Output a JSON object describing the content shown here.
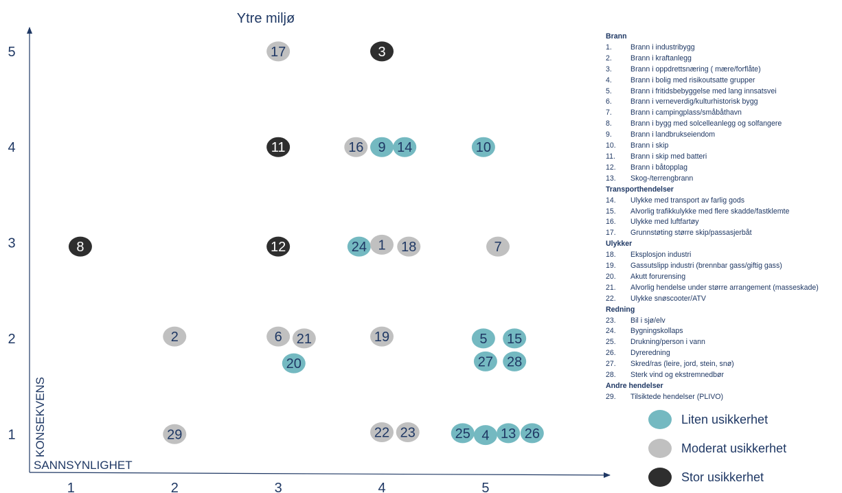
{
  "chart_data": {
    "type": "scatter",
    "title": "Ytre miljø",
    "xlabel": "SANNSYNLIGHET",
    "ylabel": "KONSEKVENS",
    "x_ticks": [
      "1",
      "2",
      "3",
      "4",
      "5"
    ],
    "y_ticks": [
      "1",
      "2",
      "3",
      "4",
      "5"
    ],
    "xlim": [
      0.6,
      6.2
    ],
    "ylim": [
      0.6,
      5.25
    ],
    "grid": false,
    "colors": {
      "liten": "#74b9c1",
      "moderat": "#c0c0c0",
      "stor": "#2e2e2e",
      "axis": "#1f3864",
      "text": "#1f3864"
    },
    "points": [
      {
        "label": "17",
        "x": 3.0,
        "y": 5.0,
        "uncertainty": "moderat"
      },
      {
        "label": "3",
        "x": 4.0,
        "y": 5.0,
        "uncertainty": "stor"
      },
      {
        "label": "11",
        "x": 3.0,
        "y": 4.0,
        "uncertainty": "stor"
      },
      {
        "label": "16",
        "x": 3.75,
        "y": 4.0,
        "uncertainty": "moderat"
      },
      {
        "label": "9",
        "x": 4.0,
        "y": 4.0,
        "uncertainty": "liten"
      },
      {
        "label": "14",
        "x": 4.22,
        "y": 4.0,
        "uncertainty": "liten"
      },
      {
        "label": "10",
        "x": 4.98,
        "y": 4.0,
        "uncertainty": "liten"
      },
      {
        "label": "8",
        "x": 1.09,
        "y": 2.96,
        "uncertainty": "stor"
      },
      {
        "label": "12",
        "x": 3.0,
        "y": 2.96,
        "uncertainty": "stor"
      },
      {
        "label": "24",
        "x": 3.78,
        "y": 2.96,
        "uncertainty": "liten"
      },
      {
        "label": "1",
        "x": 4.0,
        "y": 2.98,
        "uncertainty": "moderat"
      },
      {
        "label": "18",
        "x": 4.26,
        "y": 2.96,
        "uncertainty": "moderat"
      },
      {
        "label": "7",
        "x": 5.12,
        "y": 2.96,
        "uncertainty": "moderat"
      },
      {
        "label": "2",
        "x": 2.0,
        "y": 2.02,
        "uncertainty": "moderat"
      },
      {
        "label": "6",
        "x": 3.0,
        "y": 2.02,
        "uncertainty": "moderat"
      },
      {
        "label": "21",
        "x": 3.25,
        "y": 2.0,
        "uncertainty": "moderat"
      },
      {
        "label": "19",
        "x": 4.0,
        "y": 2.02,
        "uncertainty": "moderat"
      },
      {
        "label": "5",
        "x": 4.98,
        "y": 2.0,
        "uncertainty": "liten"
      },
      {
        "label": "15",
        "x": 5.28,
        "y": 2.0,
        "uncertainty": "liten"
      },
      {
        "label": "20",
        "x": 3.15,
        "y": 1.74,
        "uncertainty": "liten"
      },
      {
        "label": "27",
        "x": 5.0,
        "y": 1.76,
        "uncertainty": "liten"
      },
      {
        "label": "28",
        "x": 5.28,
        "y": 1.76,
        "uncertainty": "liten"
      },
      {
        "label": "29",
        "x": 2.0,
        "y": 1.0,
        "uncertainty": "moderat"
      },
      {
        "label": "22",
        "x": 4.0,
        "y": 1.02,
        "uncertainty": "moderat"
      },
      {
        "label": "23",
        "x": 4.25,
        "y": 1.02,
        "uncertainty": "moderat"
      },
      {
        "label": "25",
        "x": 4.78,
        "y": 1.01,
        "uncertainty": "liten"
      },
      {
        "label": "4",
        "x": 5.0,
        "y": 0.99,
        "uncertainty": "liten"
      },
      {
        "label": "13",
        "x": 5.22,
        "y": 1.01,
        "uncertainty": "liten"
      },
      {
        "label": "26",
        "x": 5.45,
        "y": 1.01,
        "uncertainty": "liten"
      }
    ]
  },
  "event_legend": [
    {
      "category": "Brann",
      "items": [
        {
          "num": "1.",
          "text": "Brann i industribygg"
        },
        {
          "num": "2.",
          "text": "Brann i kraftanlegg"
        },
        {
          "num": "3.",
          "text": "Brann i oppdrettsnæring (  mære/forflåte)"
        },
        {
          "num": "4.",
          "text": "Brann i bolig med risikoutsatte grupper"
        },
        {
          "num": "5.",
          "text": "Brann i fritidsbebyggelse med lang innsatsvei"
        },
        {
          "num": "6.",
          "text": "Brann i verneverdig/kulturhistorisk bygg"
        },
        {
          "num": "7.",
          "text": "Brann i campingplass/småbåthavn"
        },
        {
          "num": "8.",
          "text": "Brann i bygg med solcelleanlegg og solfangere"
        },
        {
          "num": "9.",
          "text": "Brann i landbrukseiendom"
        },
        {
          "num": "10.",
          "text": "Brann i skip"
        },
        {
          "num": "11.",
          "text": "Brann i skip med batteri"
        },
        {
          "num": "12.",
          "text": "Brann i båtopplag"
        },
        {
          "num": "13.",
          "text": "Skog-/terrengbrann"
        }
      ]
    },
    {
      "category": "Transporthendelser",
      "items": [
        {
          "num": "14.",
          "text": "Ulykke med transport av farlig gods"
        },
        {
          "num": "15.",
          "text": "Alvorlig trafikkulykke med flere skadde/fastklemte"
        },
        {
          "num": "16.",
          "text": "Ulykke med luftfartøy"
        },
        {
          "num": "17.",
          "text": "Grunnstøting større skip/passasjerbåt"
        }
      ]
    },
    {
      "category": "Ulykker",
      "items": [
        {
          "num": "18.",
          "text": "Eksplosjon industri"
        },
        {
          "num": "19.",
          "text": "Gassutslipp industri (brennbar gass/giftig gass)"
        },
        {
          "num": "20.",
          "text": "Akutt forurensing"
        },
        {
          "num": "21.",
          "text": "Alvorlig hendelse under større arrangement (masseskade)"
        },
        {
          "num": "22.",
          "text": "Ulykke snøscooter/ATV"
        }
      ]
    },
    {
      "category": "Redning",
      "items": [
        {
          "num": "23.",
          "text": "Bil i sjø/elv"
        },
        {
          "num": "24.",
          "text": "Bygningskollaps"
        },
        {
          "num": "25.",
          "text": "Drukning/person i vann"
        },
        {
          "num": "26.",
          "text": "Dyreredning"
        },
        {
          "num": "27.",
          "text": "Skred/ras (leire, jord, stein, snø)"
        },
        {
          "num": "28.",
          "text": "Sterk vind og ekstremnedbør"
        }
      ]
    },
    {
      "category": "Andre hendelser",
      "items": [
        {
          "num": "29.",
          "text": "Tilsiktede hendelser (PLIVO)"
        }
      ]
    }
  ],
  "uncertainty_legend": [
    {
      "key": "liten",
      "label": "Liten usikkerhet",
      "color": "#74b9c1"
    },
    {
      "key": "moderat",
      "label": "Moderat usikkerhet",
      "color": "#c0c0c0"
    },
    {
      "key": "stor",
      "label": "Stor usikkerhet",
      "color": "#2e2e2e"
    }
  ]
}
